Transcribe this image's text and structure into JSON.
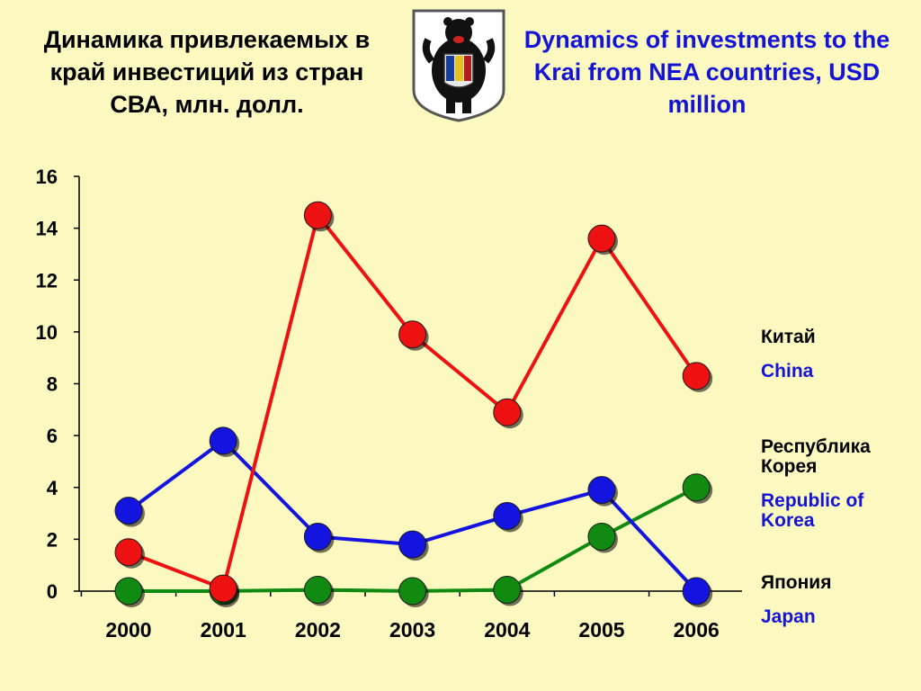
{
  "header": {
    "title_ru": "Динамика привлекаемых в край инвестиций из стран СВА, млн. долл.",
    "title_en": "Dynamics of investments to the Krai from NEA countries, USD million",
    "emblem_icon": "coat-of-arms-bear-icon"
  },
  "legend": {
    "china_ru": "Китай",
    "china_en": "China",
    "korea_ru": "Республика Корея",
    "korea_en": "Republic of Korea",
    "japan_ru": "Япония",
    "japan_en": "Japan"
  },
  "colors": {
    "china": "#ee1111",
    "korea": "#1414e0",
    "japan": "#118a11",
    "background": "#fbf9bf"
  },
  "chart_data": {
    "type": "line",
    "categories": [
      "2000",
      "2001",
      "2002",
      "2003",
      "2004",
      "2005",
      "2006"
    ],
    "series": [
      {
        "name": "Китай / China",
        "color": "#ee1111",
        "values": [
          1.5,
          0.1,
          14.5,
          9.9,
          6.9,
          13.6,
          8.3
        ]
      },
      {
        "name": "Республика Корея / Republic of Korea",
        "color": "#1414e0",
        "values": [
          3.1,
          5.8,
          2.1,
          1.8,
          2.9,
          3.9,
          0.0
        ]
      },
      {
        "name": "Япония / Japan",
        "color": "#118a11",
        "values": [
          0.0,
          0.0,
          0.05,
          0.0,
          0.05,
          2.1,
          4.0
        ]
      }
    ],
    "ylim": [
      0,
      16
    ],
    "yticks": [
      0,
      2,
      4,
      6,
      8,
      10,
      12,
      14,
      16
    ],
    "legend_position": "right",
    "grid": false
  }
}
